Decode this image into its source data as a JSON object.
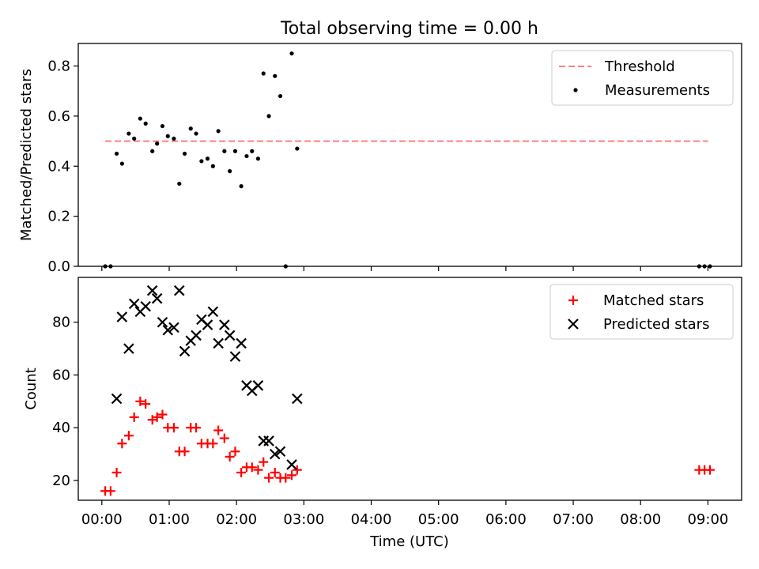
{
  "chart_data": [
    {
      "type": "scatter",
      "title": "Total observing time = 0.00 h",
      "xlabel": "",
      "ylabel": "Matched/Predicted stars",
      "ylim": [
        0,
        0.89
      ],
      "y_ticks": [
        0.0,
        0.2,
        0.4,
        0.6,
        0.8
      ],
      "y_tick_labels": [
        "0.0",
        "0.2",
        "0.4",
        "0.6",
        "0.8"
      ],
      "grid": false,
      "legend_position": "upper-right",
      "series": [
        {
          "name": "Threshold",
          "kind": "dashed-line",
          "color": "#ff7f7f",
          "x": [
            0.05,
            9.0
          ],
          "y": [
            0.5,
            0.5
          ]
        },
        {
          "name": "Measurements",
          "kind": "dot",
          "color": "#000000",
          "x": [
            0.05,
            0.13,
            0.22,
            0.3,
            0.4,
            0.48,
            0.57,
            0.65,
            0.75,
            0.82,
            0.9,
            0.98,
            1.07,
            1.15,
            1.23,
            1.32,
            1.4,
            1.48,
            1.57,
            1.65,
            1.73,
            1.82,
            1.9,
            1.98,
            2.07,
            2.15,
            2.23,
            2.32,
            2.4,
            2.48,
            2.57,
            2.65,
            2.73,
            2.82,
            2.9,
            8.87,
            8.95,
            9.03
          ],
          "y": [
            0.0,
            0.0,
            0.45,
            0.41,
            0.53,
            0.51,
            0.59,
            0.57,
            0.46,
            0.49,
            0.56,
            0.52,
            0.51,
            0.33,
            0.45,
            0.55,
            0.53,
            0.42,
            0.43,
            0.4,
            0.54,
            0.46,
            0.38,
            0.46,
            0.32,
            0.44,
            0.46,
            0.43,
            0.77,
            0.6,
            0.76,
            0.68,
            0.0,
            0.85,
            0.47,
            0.0,
            0.0,
            0.0
          ]
        }
      ]
    },
    {
      "type": "scatter",
      "title": "",
      "xlabel": "Time (UTC)",
      "ylabel": "Count",
      "xlim": [
        -0.35,
        9.5
      ],
      "ylim": [
        12.5,
        97
      ],
      "x_ticks": [
        0,
        1,
        2,
        3,
        4,
        5,
        6,
        7,
        8,
        9
      ],
      "x_tick_labels": [
        "00:00",
        "01:00",
        "02:00",
        "03:00",
        "04:00",
        "05:00",
        "06:00",
        "07:00",
        "08:00",
        "09:00"
      ],
      "y_ticks": [
        20,
        40,
        60,
        80
      ],
      "y_tick_labels": [
        "20",
        "40",
        "60",
        "80"
      ],
      "grid": false,
      "legend_position": "upper-right",
      "series": [
        {
          "name": "Matched stars",
          "kind": "plus",
          "color": "#ff0000",
          "x": [
            0.05,
            0.13,
            0.22,
            0.3,
            0.4,
            0.48,
            0.57,
            0.65,
            0.75,
            0.82,
            0.9,
            0.98,
            1.07,
            1.15,
            1.23,
            1.32,
            1.4,
            1.48,
            1.57,
            1.65,
            1.73,
            1.82,
            1.9,
            1.98,
            2.07,
            2.15,
            2.23,
            2.32,
            2.4,
            2.48,
            2.57,
            2.65,
            2.73,
            2.82,
            2.9,
            8.87,
            8.95,
            9.03
          ],
          "y": [
            16,
            16,
            23,
            34,
            37,
            44,
            50,
            49,
            43,
            44,
            45,
            40,
            40,
            31,
            31,
            40,
            40,
            34,
            34,
            34,
            39,
            36,
            29,
            31,
            23,
            25,
            25,
            24,
            27,
            21,
            23,
            21,
            21,
            22,
            24,
            24,
            24,
            24
          ]
        },
        {
          "name": "Predicted stars",
          "kind": "x",
          "color": "#000000",
          "x": [
            0.22,
            0.3,
            0.4,
            0.48,
            0.57,
            0.65,
            0.75,
            0.82,
            0.9,
            0.98,
            1.07,
            1.15,
            1.23,
            1.32,
            1.4,
            1.48,
            1.57,
            1.65,
            1.73,
            1.82,
            1.9,
            1.98,
            2.07,
            2.15,
            2.23,
            2.32,
            2.4,
            2.48,
            2.57,
            2.65,
            2.82,
            2.9
          ],
          "y": [
            51,
            82,
            70,
            87,
            84,
            86,
            92,
            89,
            80,
            77,
            78,
            92,
            69,
            73,
            75,
            81,
            79,
            84,
            72,
            79,
            75,
            67,
            72,
            56,
            54,
            56,
            35,
            35,
            30,
            31,
            26,
            51
          ]
        }
      ]
    }
  ]
}
